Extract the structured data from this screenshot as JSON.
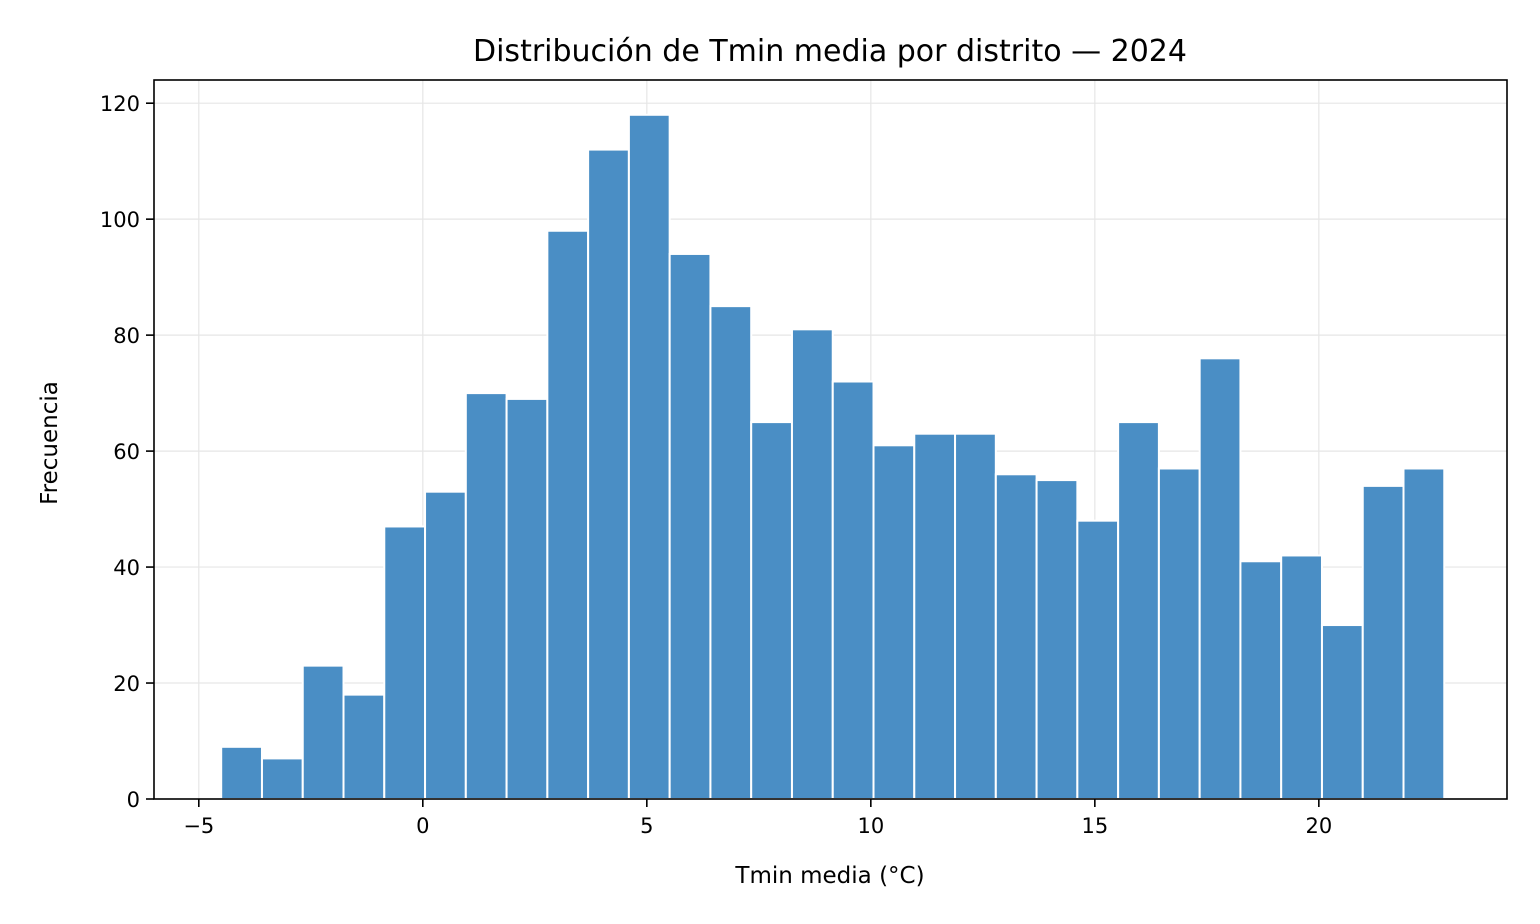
{
  "chart_data": {
    "type": "bar",
    "title": "Distribución de Tmin media por distrito — 2024",
    "xlabel": "Tmin media (°C)",
    "ylabel": "Frecuencia",
    "bin_start": -4.5,
    "bin_width": 0.91,
    "values": [
      9,
      7,
      23,
      18,
      47,
      53,
      70,
      69,
      98,
      112,
      118,
      94,
      85,
      65,
      81,
      72,
      61,
      63,
      63,
      56,
      55,
      48,
      65,
      57,
      76,
      41,
      42,
      30,
      54,
      57
    ],
    "xlim": [
      -6.0,
      24.2
    ],
    "ylim": [
      0,
      124
    ],
    "xticks": [
      -5,
      0,
      5,
      10,
      15,
      20
    ],
    "yticks": [
      0,
      20,
      40,
      60,
      80,
      100,
      120
    ],
    "xtick_labels": [
      "−5",
      "0",
      "5",
      "10",
      "15",
      "20"
    ],
    "ytick_labels": [
      "0",
      "20",
      "40",
      "60",
      "80",
      "100",
      "120"
    ],
    "grid": true,
    "bar_color": "#4a8ec5",
    "bar_edge_color": "#ffffff",
    "grid_color": "#e6e6e6"
  }
}
